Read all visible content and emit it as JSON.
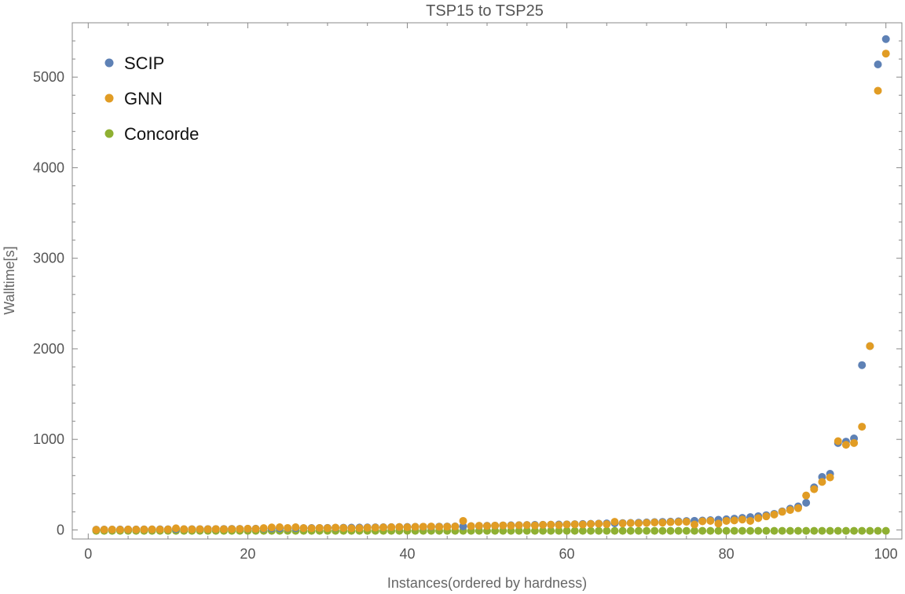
{
  "chart_data": {
    "type": "scatter",
    "title": "TSP15 to TSP25",
    "xlabel": "Instances(ordered by hardness)",
    "ylabel": "Walltime[s]",
    "xlim": [
      -2,
      102
    ],
    "ylim": [
      -100,
      5600
    ],
    "xticks": [
      0,
      20,
      40,
      60,
      80,
      100
    ],
    "yticks": [
      0,
      1000,
      2000,
      3000,
      4000,
      5000
    ],
    "grid": false,
    "legend_position": "top-left",
    "colors": {
      "SCIP": "#5e81b5",
      "GNN": "#e19c24",
      "Concorde": "#8fb032"
    },
    "series": [
      {
        "name": "SCIP",
        "x": [
          1,
          2,
          3,
          4,
          5,
          6,
          7,
          8,
          9,
          10,
          11,
          12,
          13,
          14,
          15,
          16,
          17,
          18,
          19,
          20,
          21,
          22,
          23,
          24,
          25,
          26,
          27,
          28,
          29,
          30,
          31,
          32,
          33,
          34,
          35,
          36,
          37,
          38,
          39,
          40,
          41,
          42,
          43,
          44,
          45,
          46,
          47,
          48,
          49,
          50,
          51,
          52,
          53,
          54,
          55,
          56,
          57,
          58,
          59,
          60,
          61,
          62,
          63,
          64,
          65,
          66,
          67,
          68,
          69,
          70,
          71,
          72,
          73,
          74,
          75,
          76,
          77,
          78,
          79,
          80,
          81,
          82,
          83,
          84,
          85,
          86,
          87,
          88,
          89,
          90,
          91,
          92,
          93,
          94,
          95,
          96,
          97,
          98,
          99,
          100
        ],
        "y": [
          3,
          4,
          4,
          5,
          5,
          5,
          6,
          6,
          7,
          7,
          8,
          8,
          9,
          9,
          10,
          10,
          11,
          12,
          12,
          13,
          14,
          15,
          16,
          17,
          18,
          19,
          20,
          21,
          22,
          23,
          24,
          25,
          26,
          27,
          28,
          29,
          30,
          31,
          32,
          33,
          34,
          35,
          36,
          37,
          38,
          39,
          40,
          42,
          44,
          46,
          48,
          50,
          52,
          53,
          55,
          56,
          57,
          58,
          60,
          62,
          64,
          66,
          68,
          70,
          72,
          74,
          76,
          78,
          80,
          83,
          86,
          89,
          92,
          95,
          98,
          101,
          104,
          108,
          112,
          118,
          125,
          133,
          142,
          152,
          163,
          178,
          205,
          235,
          260,
          300,
          470,
          585,
          620,
          960,
          975,
          1010,
          1820,
          2030,
          5140,
          5420
        ]
      },
      {
        "name": "GNN",
        "x": [
          1,
          2,
          3,
          4,
          5,
          6,
          7,
          8,
          9,
          10,
          11,
          12,
          13,
          14,
          15,
          16,
          17,
          18,
          19,
          20,
          21,
          22,
          23,
          24,
          25,
          26,
          27,
          28,
          29,
          30,
          31,
          32,
          33,
          34,
          35,
          36,
          37,
          38,
          39,
          40,
          41,
          42,
          43,
          44,
          45,
          46,
          47,
          48,
          49,
          50,
          51,
          52,
          53,
          54,
          55,
          56,
          57,
          58,
          59,
          60,
          61,
          62,
          63,
          64,
          65,
          66,
          67,
          68,
          69,
          70,
          71,
          72,
          73,
          74,
          75,
          76,
          77,
          78,
          79,
          80,
          81,
          82,
          83,
          84,
          85,
          86,
          87,
          88,
          89,
          90,
          91,
          92,
          93,
          94,
          95,
          96,
          97,
          98,
          99,
          100
        ],
        "y": [
          2,
          3,
          4,
          3,
          5,
          4,
          5,
          6,
          5,
          6,
          18,
          8,
          7,
          9,
          8,
          10,
          9,
          10,
          11,
          14,
          12,
          20,
          28,
          30,
          22,
          30,
          20,
          18,
          22,
          20,
          26,
          22,
          18,
          20,
          24,
          26,
          28,
          30,
          32,
          30,
          34,
          36,
          38,
          34,
          36,
          38,
          100,
          42,
          46,
          44,
          48,
          50,
          48,
          52,
          54,
          50,
          56,
          58,
          54,
          60,
          62,
          60,
          66,
          68,
          64,
          90,
          72,
          76,
          74,
          78,
          82,
          80,
          86,
          88,
          90,
          60,
          95,
          100,
          70,
          100,
          105,
          115,
          100,
          130,
          150,
          170,
          200,
          220,
          240,
          380,
          450,
          530,
          580,
          980,
          940,
          960,
          1140,
          2030,
          4850,
          5260
        ]
      },
      {
        "name": "Concorde",
        "x": [
          1,
          2,
          3,
          4,
          5,
          6,
          7,
          8,
          9,
          10,
          11,
          12,
          13,
          14,
          15,
          16,
          17,
          18,
          19,
          20,
          21,
          22,
          23,
          24,
          25,
          26,
          27,
          28,
          29,
          30,
          31,
          32,
          33,
          34,
          35,
          36,
          37,
          38,
          39,
          40,
          41,
          42,
          43,
          44,
          45,
          46,
          47,
          48,
          49,
          50,
          51,
          52,
          53,
          54,
          55,
          56,
          57,
          58,
          59,
          60,
          61,
          62,
          63,
          64,
          65,
          66,
          67,
          68,
          69,
          70,
          71,
          72,
          73,
          74,
          75,
          76,
          77,
          78,
          79,
          80,
          81,
          82,
          83,
          84,
          85,
          86,
          87,
          88,
          89,
          90,
          91,
          92,
          93,
          94,
          95,
          96,
          97,
          98,
          99,
          100
        ],
        "y": [
          -10,
          -10,
          -10,
          -10,
          -10,
          -10,
          -10,
          -10,
          -10,
          -10,
          -10,
          -10,
          -10,
          -10,
          -10,
          -10,
          -10,
          -10,
          -10,
          -10,
          -10,
          -10,
          -10,
          -10,
          -10,
          -10,
          -10,
          -10,
          -10,
          -10,
          -10,
          -10,
          -10,
          -10,
          -10,
          -10,
          -10,
          -10,
          -10,
          -10,
          -10,
          -10,
          -10,
          -10,
          -10,
          -10,
          -10,
          -10,
          -10,
          -10,
          -10,
          -10,
          -10,
          -10,
          -10,
          -10,
          -10,
          -10,
          -10,
          -10,
          -10,
          -10,
          -10,
          -10,
          -10,
          -10,
          -10,
          -10,
          -10,
          -10,
          -10,
          -10,
          -10,
          -10,
          -10,
          -10,
          -10,
          -10,
          -10,
          -10,
          -10,
          -10,
          -10,
          -10,
          -10,
          -10,
          -10,
          -10,
          -10,
          -10,
          -10,
          -10,
          -10,
          -10,
          -10,
          -10,
          -10,
          -10,
          -10,
          -10
        ]
      }
    ]
  }
}
